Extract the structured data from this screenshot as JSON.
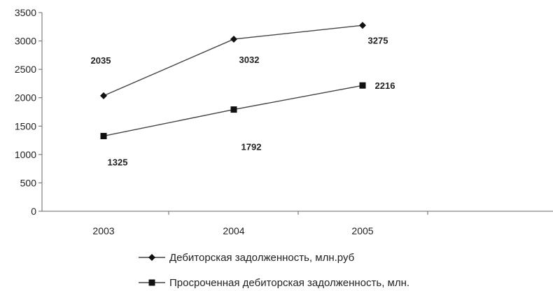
{
  "chart_data": {
    "type": "line",
    "categories": [
      "2003",
      "2004",
      "2005"
    ],
    "ylim": [
      0,
      3500
    ],
    "yticks": [
      0,
      500,
      1000,
      1500,
      2000,
      2500,
      3000,
      3500
    ],
    "grid": false,
    "legend_position": "bottom",
    "series": [
      {
        "name": "Дебиторская задолженность, млн.руб",
        "marker": "diamond",
        "values": [
          2035,
          3032,
          3275
        ]
      },
      {
        "name": "Просроченная дебиторская задолженность, млн.",
        "marker": "square",
        "values": [
          1325,
          1792,
          2216
        ]
      }
    ]
  }
}
